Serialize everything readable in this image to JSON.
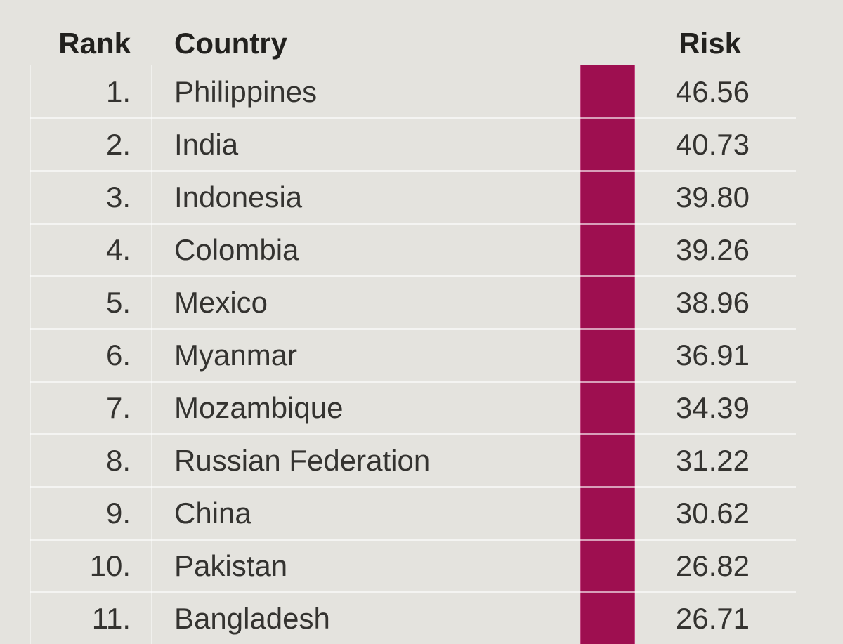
{
  "colors": {
    "background": "#e4e3de",
    "band": "#9e0f50",
    "band_edge": "rgba(226,120,172,0.5)",
    "separator": "rgba(255,255,255,0.6)",
    "gridline": "rgba(255,255,255,0.45)",
    "header_text": "#22211e",
    "body_text": "#343330"
  },
  "chart_data": {
    "type": "table",
    "title": "",
    "columns": [
      "Rank",
      "Country",
      "Risk"
    ],
    "rows": [
      {
        "rank": 1,
        "country": "Philippines",
        "risk": 46.56
      },
      {
        "rank": 2,
        "country": "India",
        "risk": 40.73
      },
      {
        "rank": 3,
        "country": "Indonesia",
        "risk": 39.8
      },
      {
        "rank": 4,
        "country": "Colombia",
        "risk": 39.26
      },
      {
        "rank": 5,
        "country": "Mexico",
        "risk": 38.96
      },
      {
        "rank": 6,
        "country": "Myanmar",
        "risk": 36.91
      },
      {
        "rank": 7,
        "country": "Mozambique",
        "risk": 34.39
      },
      {
        "rank": 8,
        "country": "Russian Federation",
        "risk": 31.22
      },
      {
        "rank": 9,
        "country": "China",
        "risk": 30.62
      },
      {
        "rank": 10,
        "country": "Pakistan",
        "risk": 26.82
      },
      {
        "rank": 11,
        "country": "Bangladesh",
        "risk": 26.71
      }
    ],
    "layout": {
      "grid": "faint white horizontal row separators",
      "legend": "none",
      "risk_band": "solid magenta color band between Country and Risk columns, same width every row"
    }
  }
}
